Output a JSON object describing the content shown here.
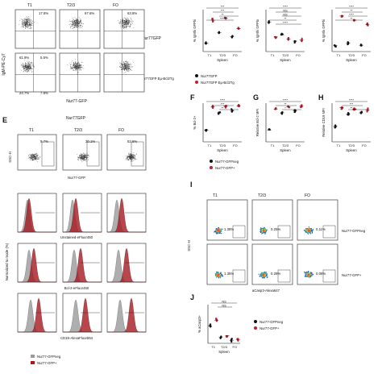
{
  "panel_letters": {
    "e": "E",
    "f": "F",
    "g": "G",
    "h": "H",
    "i": "I",
    "j": "J"
  },
  "top_flow": {
    "columns": [
      "T1",
      "T2/3",
      "FO"
    ],
    "rows": [
      {
        "label": "Nur77GFP",
        "quads": [
          [
            "17.8%",
            "67.6%",
            "35.4%",
            "0.76%",
            "26.7%",
            "4.5%"
          ]
        ]
      },
      {
        "label": "Nur77GFP Eμ-Bcl2Tg",
        "quads": []
      }
    ],
    "row1": [
      {
        "tl": "",
        "tr": "17.8%",
        "bl": "",
        "br": ""
      },
      {
        "tl": "",
        "tr": "67.6%",
        "bl": "",
        "br": ""
      },
      {
        "tl": "",
        "tr": "63.8%",
        "bl": "",
        "br": ""
      }
    ],
    "row2": [
      {
        "tl": "61.9%",
        "tr": "5.5%",
        "bl": "24.7%",
        "br": "7.8%"
      },
      {
        "tl": "",
        "tr": "",
        "bl": "",
        "br": ""
      },
      {
        "tl": "",
        "tr": "",
        "bl": "",
        "br": ""
      }
    ],
    "row1_bl": [
      "",
      "",
      ""
    ],
    "row1_br": [
      "",
      "",
      ""
    ],
    "xlabel": "Nur77-GFP",
    "ylabel": "IgM-PE-Cy7",
    "row_label_1": "Nur77GFP",
    "row_label_2": "Nur77GFP Eμ-Bcl2Tg"
  },
  "top_right_charts": {
    "xlabel": "Spleen",
    "ticks": [
      "T1",
      "T2/3",
      "FO"
    ],
    "chart1": {
      "ylabel": "% IgMhi GFPhi",
      "sig": [
        "***",
        "***",
        "**",
        "****"
      ]
    },
    "chart2": {
      "ylabel": "% IgMhi GFPlo",
      "sig": [
        "****",
        "NS",
        "NS",
        "**",
        "****"
      ]
    },
    "chart3": {
      "ylabel": "% IgMlo GFPhi",
      "sig": [
        "****",
        "**",
        "****",
        "**"
      ]
    },
    "legend": [
      "Nur77GFP",
      "Nur77GFP Eμ-Bcl2Tg"
    ]
  },
  "panel_e": {
    "title": "Nur77GFP",
    "columns": [
      "T1",
      "T2/3",
      "FO"
    ],
    "gate_pcts": [
      "9.7%",
      "30.1%",
      "52.6%"
    ],
    "flow_ylabel": "SSC-H",
    "flow_xlabel": "Nur77-GFP",
    "hist_ylabel": "Normalized to mode (%)",
    "hist_xlabels": [
      "Unstained-eFluor450",
      "Bcl-2-eFluor450",
      "CD19-AlexaFluor594"
    ],
    "legend": [
      "Nur77-GFPneg",
      "Nur77-GFP+"
    ]
  },
  "panel_fgh": {
    "xlabel": "Spleen",
    "ticks": [
      "T1",
      "T2/3",
      "FO"
    ],
    "f": {
      "ylabel": "% Bcl-2+",
      "sig": [
        "****",
        "***",
        "**"
      ]
    },
    "g": {
      "ylabel": "Relative Bcl-2 MFI",
      "sig": [
        "****",
        "**",
        "*"
      ]
    },
    "h": {
      "ylabel": "Relative CD19 MFI",
      "sig": [
        "****",
        "***",
        "**"
      ]
    },
    "legend": [
      "Nur77-GFPneg",
      "Nur77-GFP+"
    ]
  },
  "panel_i": {
    "columns": [
      "T1",
      "T2/3",
      "FO"
    ],
    "row1_pcts": [
      "1.38%",
      "0.25%",
      "0.11%"
    ],
    "row2_pcts": [
      "1.35%",
      "0.29%",
      "0.08%"
    ],
    "row_labels": [
      "Nur77-GFPneg",
      "Nur77-GFP+"
    ],
    "ylabel": "SSC-H",
    "xlabel": "aCasp3-Alexa647"
  },
  "panel_j": {
    "ylabel": "% aCasp3+",
    "xlabel": "Spleen",
    "ticks": [
      "T1",
      "T2/3",
      "FO"
    ],
    "sig": [
      "NS",
      "NS"
    ],
    "legend": [
      "Nur77-GFPneg",
      "Nur77-GFP+"
    ]
  },
  "colors": {
    "black_series": "#111111",
    "red_series": "#c0202a",
    "hist_red": "#a5191f",
    "hist_grey": "#9a9a9a"
  }
}
